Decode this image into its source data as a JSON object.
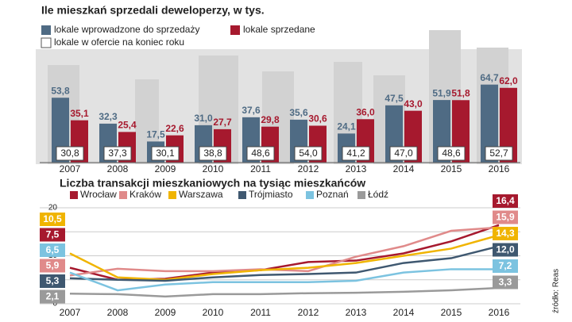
{
  "chart_data": [
    {
      "type": "bar",
      "title": "Ile mieszkań sprzedali deweloperzy, w tys.",
      "categories": [
        "2007",
        "2008",
        "2009",
        "2010",
        "2011",
        "2012",
        "2013",
        "2014",
        "2015",
        "2016"
      ],
      "series": [
        {
          "name": "lokale wprowadzone do sprzedaży",
          "color": "#4f6b84",
          "values": [
            53.8,
            32.3,
            17.5,
            31.0,
            37.6,
            35.6,
            24.1,
            47.5,
            51.9,
            64.7
          ],
          "value_labels": [
            "53,8",
            "32,3",
            "17,5",
            "31,0",
            "37,6",
            "35,6",
            "24,1",
            "47,5",
            "51,9",
            "64,7"
          ]
        },
        {
          "name": "lokale sprzedane",
          "color": "#a6192e",
          "values": [
            35.1,
            25.4,
            22.6,
            27.7,
            29.8,
            30.6,
            36.0,
            43.0,
            51.8,
            62.0
          ],
          "value_labels": [
            "35,1",
            "25,4",
            "22,6",
            "27,7",
            "29,8",
            "30,6",
            "36,0",
            "43,0",
            "51,8",
            "62,0"
          ]
        },
        {
          "name": "lokale w ofercie na koniec roku",
          "color": "#ffffff",
          "values": [
            30.8,
            37.3,
            30.1,
            38.8,
            48.6,
            54.0,
            41.2,
            47.0,
            48.6,
            52.7
          ],
          "value_labels": [
            "30,8",
            "37,3",
            "30,1",
            "38,8",
            "48,6",
            "54,0",
            "41,2",
            "47,0",
            "48,6",
            "52,7"
          ]
        }
      ]
    },
    {
      "type": "line",
      "title": "Liczba transakcji mieszkaniowych na tysiąc mieszkańców",
      "categories": [
        "2007",
        "2008",
        "2009",
        "2010",
        "2011",
        "2012",
        "2013",
        "2014",
        "2015",
        "2016"
      ],
      "ylim": [
        0,
        20
      ],
      "yticks": [
        0,
        5,
        10,
        15,
        20
      ],
      "grid": true,
      "series": [
        {
          "name": "Wrocław",
          "color": "#a6192e",
          "values": [
            7.5,
            5.0,
            5.2,
            6.5,
            7.0,
            8.7,
            9.0,
            10.5,
            13.0,
            16.4
          ],
          "value_labels": [
            "7,5",
            null,
            null,
            null,
            null,
            null,
            null,
            null,
            null,
            "16,4"
          ]
        },
        {
          "name": "Kraków",
          "color": "#e08a8a",
          "values": [
            5.9,
            7.3,
            6.8,
            6.8,
            7.2,
            6.8,
            9.8,
            12.0,
            15.2,
            15.9
          ],
          "value_labels": [
            "5,9",
            null,
            null,
            null,
            null,
            null,
            null,
            null,
            null,
            "15,9"
          ]
        },
        {
          "name": "Warszawa",
          "color": "#f0b400",
          "values": [
            10.5,
            5.5,
            5.0,
            6.2,
            7.0,
            7.5,
            8.5,
            10.0,
            11.5,
            14.3
          ],
          "value_labels": [
            "10,5",
            null,
            null,
            null,
            null,
            null,
            null,
            null,
            null,
            "14,3"
          ]
        },
        {
          "name": "Trójmiasto",
          "color": "#3f5870",
          "values": [
            5.3,
            5.0,
            4.8,
            5.5,
            6.0,
            6.2,
            6.5,
            8.5,
            9.5,
            12.0
          ],
          "value_labels": [
            "5,3",
            null,
            null,
            null,
            null,
            null,
            null,
            null,
            null,
            "12,0"
          ]
        },
        {
          "name": "Poznań",
          "color": "#7cc3e0",
          "values": [
            6.5,
            2.8,
            4.0,
            4.5,
            4.5,
            4.5,
            4.8,
            6.5,
            7.2,
            7.2
          ],
          "value_labels": [
            "6,5",
            null,
            null,
            null,
            null,
            null,
            null,
            null,
            null,
            "7,2"
          ]
        },
        {
          "name": "Łódź",
          "color": "#9a9a9a",
          "values": [
            2.1,
            2.0,
            1.5,
            2.0,
            2.0,
            2.2,
            2.3,
            2.5,
            2.8,
            3.3
          ],
          "value_labels": [
            "2,1",
            null,
            null,
            null,
            null,
            null,
            null,
            null,
            null,
            "3,3"
          ]
        }
      ]
    }
  ],
  "source": "źródło: Reas"
}
